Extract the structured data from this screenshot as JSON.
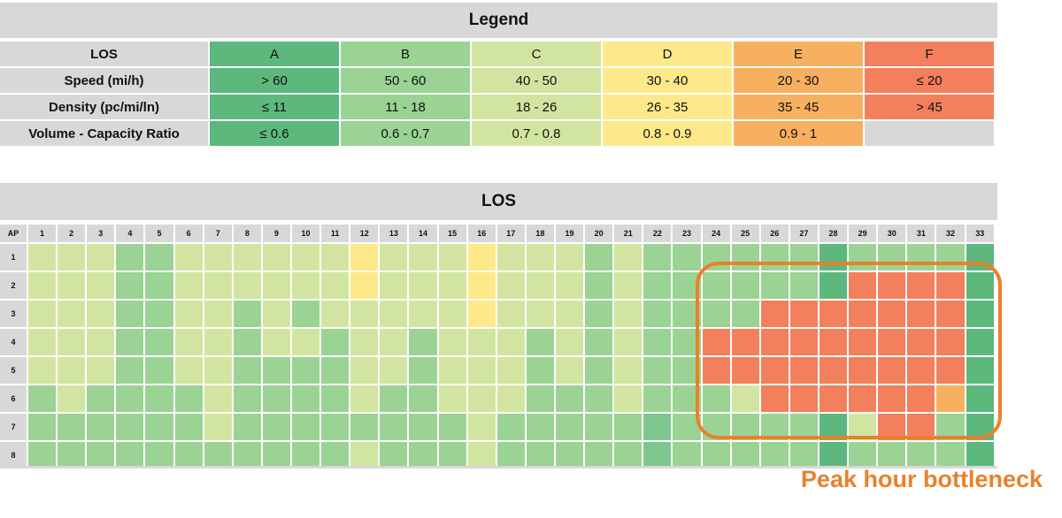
{
  "legend": {
    "title": "Legend",
    "header_label": "LOS",
    "classes": [
      "A",
      "B",
      "C",
      "D",
      "E",
      "F"
    ],
    "colors": {
      "A": "#5cb87d",
      "B": "#9ad394",
      "C": "#d2e5a0",
      "D": "#fde98a",
      "E": "#f7b05f",
      "F": "#f37f5d"
    },
    "rows": [
      {
        "label": "Speed (mi/h)",
        "values": [
          "> 60",
          "50 - 60",
          "40 - 50",
          "30 - 40",
          "20 - 30",
          "≤  20"
        ]
      },
      {
        "label": "Density (pc/mi/ln)",
        "values": [
          "≤  11",
          "11 - 18",
          "18 - 26",
          "26 - 35",
          "35 - 45",
          "> 45"
        ]
      },
      {
        "label": "Volume - Capacity Ratio",
        "values": [
          "≤  0.6",
          "0.6 - 0.7",
          "0.7 - 0.8",
          "0.8 - 0.9",
          "0.9 - 1",
          ""
        ]
      }
    ]
  },
  "chart_data": {
    "type": "heatmap",
    "title": "LOS",
    "row_header": "AP",
    "columns": [
      "1",
      "2",
      "3",
      "4",
      "5",
      "6",
      "7",
      "8",
      "9",
      "10",
      "11",
      "12",
      "13",
      "14",
      "15",
      "16",
      "17",
      "18",
      "19",
      "20",
      "21",
      "22",
      "23",
      "24",
      "25",
      "26",
      "27",
      "28",
      "29",
      "30",
      "31",
      "32",
      "33"
    ],
    "rows": [
      "1",
      "2",
      "3",
      "4",
      "5",
      "6",
      "7",
      "8"
    ],
    "colors": {
      "A": "#5cb87d",
      "A2": "#7fc58e",
      "B": "#9ad394",
      "C": "#d2e5a0",
      "D": "#fde98a",
      "E": "#f7b05f",
      "F": "#f37f5d"
    },
    "values": [
      [
        "C",
        "C",
        "C",
        "B",
        "B",
        "C",
        "C",
        "C",
        "C",
        "C",
        "C",
        "D",
        "C",
        "C",
        "C",
        "D",
        "C",
        "C",
        "C",
        "B",
        "C",
        "B",
        "B",
        "B",
        "B",
        "B",
        "B",
        "A",
        "B",
        "B",
        "B",
        "B",
        "A"
      ],
      [
        "C",
        "C",
        "C",
        "B",
        "B",
        "C",
        "C",
        "C",
        "C",
        "C",
        "C",
        "D",
        "C",
        "C",
        "C",
        "D",
        "C",
        "C",
        "C",
        "B",
        "C",
        "B",
        "B",
        "B",
        "B",
        "B",
        "B",
        "A",
        "F",
        "F",
        "F",
        "F",
        "A"
      ],
      [
        "C",
        "C",
        "C",
        "B",
        "B",
        "C",
        "C",
        "B",
        "C",
        "B",
        "C",
        "C",
        "C",
        "C",
        "C",
        "D",
        "C",
        "C",
        "C",
        "B",
        "C",
        "B",
        "B",
        "B",
        "B",
        "F",
        "F",
        "F",
        "F",
        "F",
        "F",
        "F",
        "A"
      ],
      [
        "C",
        "C",
        "C",
        "B",
        "B",
        "C",
        "C",
        "B",
        "C",
        "C",
        "B",
        "C",
        "C",
        "B",
        "C",
        "C",
        "C",
        "B",
        "C",
        "B",
        "C",
        "B",
        "B",
        "F",
        "F",
        "F",
        "F",
        "F",
        "F",
        "F",
        "F",
        "F",
        "A"
      ],
      [
        "C",
        "C",
        "C",
        "B",
        "B",
        "C",
        "C",
        "B",
        "B",
        "B",
        "B",
        "C",
        "C",
        "B",
        "C",
        "C",
        "C",
        "B",
        "C",
        "B",
        "C",
        "B",
        "B",
        "F",
        "F",
        "F",
        "F",
        "F",
        "F",
        "F",
        "F",
        "F",
        "A"
      ],
      [
        "B",
        "C",
        "B",
        "B",
        "B",
        "B",
        "C",
        "B",
        "B",
        "B",
        "B",
        "C",
        "B",
        "B",
        "C",
        "C",
        "C",
        "B",
        "B",
        "B",
        "C",
        "B",
        "B",
        "B",
        "C",
        "F",
        "F",
        "F",
        "F",
        "F",
        "F",
        "E",
        "A"
      ],
      [
        "B",
        "B",
        "B",
        "B",
        "B",
        "B",
        "C",
        "B",
        "B",
        "B",
        "B",
        "B",
        "B",
        "B",
        "B",
        "C",
        "B",
        "B",
        "B",
        "B",
        "B",
        "A2",
        "B",
        "B",
        "B",
        "B",
        "B",
        "A",
        "C",
        "F",
        "F",
        "B",
        "A"
      ],
      [
        "B",
        "B",
        "B",
        "B",
        "B",
        "B",
        "B",
        "B",
        "B",
        "B",
        "B",
        "C",
        "B",
        "B",
        "B",
        "C",
        "B",
        "B",
        "B",
        "B",
        "B",
        "A2",
        "B",
        "B",
        "B",
        "B",
        "B",
        "A",
        "B",
        "B",
        "B",
        "B",
        "A"
      ]
    ]
  },
  "callout": {
    "text": "Peak hour bottleneck",
    "color": "#e9812b"
  }
}
